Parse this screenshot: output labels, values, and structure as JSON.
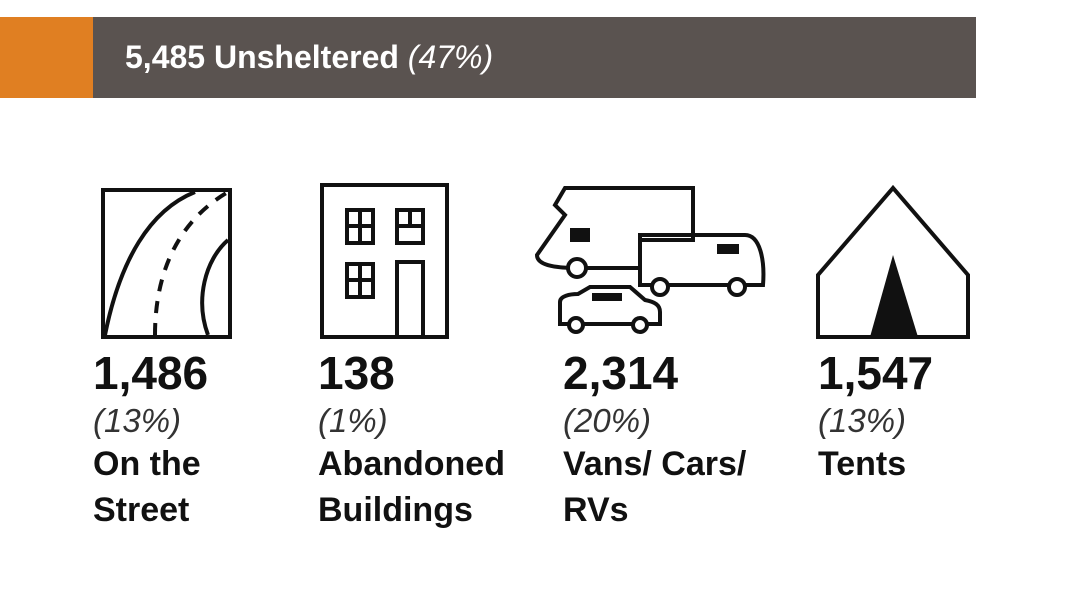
{
  "header": {
    "count": "5,485",
    "label": "Unsheltered",
    "percent": "(47%)"
  },
  "items": [
    {
      "count": "1,486",
      "percent": "(13%)",
      "label": "On the Street"
    },
    {
      "count": "138",
      "percent": "(1%)",
      "label": "Abandoned Buildings"
    },
    {
      "count": "2,314",
      "percent": "(20%)",
      "label": "Vans/ Cars/ RVs"
    },
    {
      "count": "1,547",
      "percent": "(13%)",
      "label": "Tents"
    }
  ]
}
